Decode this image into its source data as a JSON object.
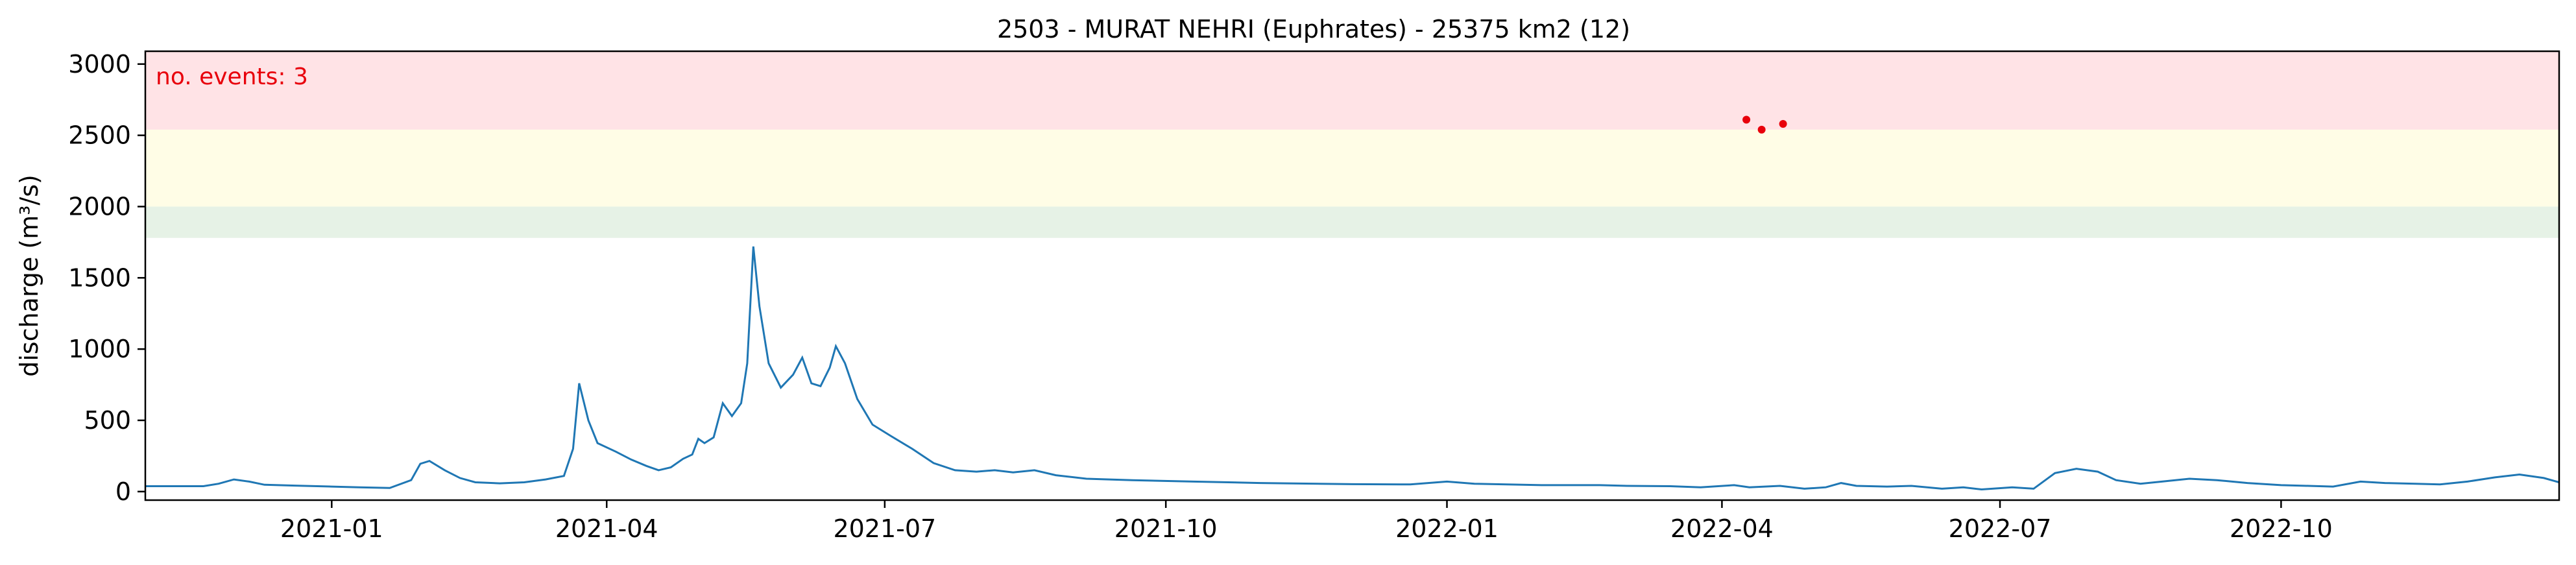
{
  "chart_data": {
    "type": "line",
    "title": "2503 - MURAT NEHRI (Euphrates) - 25375 km2 (12)",
    "xlabel": "",
    "ylabel": "discharge (m³/s)",
    "xlim": [
      "2020-11-01",
      "2022-12-31"
    ],
    "ylim": [
      -60,
      3090
    ],
    "x_tick_labels": [
      "2021-01",
      "2021-04",
      "2021-07",
      "2021-10",
      "2022-01",
      "2022-04",
      "2022-07",
      "2022-10"
    ],
    "x_ticks": [
      "2021-01-01",
      "2021-04-01",
      "2021-07-01",
      "2021-10-01",
      "2022-01-01",
      "2022-04-01",
      "2022-07-01",
      "2022-10-01"
    ],
    "y_ticks": [
      0,
      500,
      1000,
      1500,
      2000,
      2500,
      3000
    ],
    "grid": false,
    "annotation": "no. events: 3",
    "threshold_bands": [
      {
        "from": 1780,
        "to": 2000,
        "color": "#e6f2e6"
      },
      {
        "from": 2000,
        "to": 2540,
        "color": "#fffde6"
      },
      {
        "from": 2540,
        "to": 3090,
        "color": "#ffe3e6"
      }
    ],
    "line_color": "#1f77b4",
    "event_color": "#e8000b",
    "series": [
      {
        "points": [
          [
            "2020-11-01",
            38
          ],
          [
            "2020-11-20",
            38
          ],
          [
            "2020-11-25",
            55
          ],
          [
            "2020-11-30",
            85
          ],
          [
            "2020-12-05",
            70
          ],
          [
            "2020-12-10",
            48
          ],
          [
            "2020-12-20",
            42
          ],
          [
            "2021-01-01",
            35
          ],
          [
            "2021-01-10",
            30
          ],
          [
            "2021-01-20",
            25
          ],
          [
            "2021-01-27",
            80
          ],
          [
            "2021-01-30",
            195
          ],
          [
            "2021-02-02",
            215
          ],
          [
            "2021-02-07",
            150
          ],
          [
            "2021-02-12",
            95
          ],
          [
            "2021-02-17",
            65
          ],
          [
            "2021-02-25",
            58
          ],
          [
            "2021-03-05",
            65
          ],
          [
            "2021-03-12",
            85
          ],
          [
            "2021-03-18",
            110
          ],
          [
            "2021-03-21",
            300
          ],
          [
            "2021-03-23",
            760
          ],
          [
            "2021-03-26",
            500
          ],
          [
            "2021-03-29",
            340
          ],
          [
            "2021-04-04",
            280
          ],
          [
            "2021-04-09",
            225
          ],
          [
            "2021-04-14",
            180
          ],
          [
            "2021-04-18",
            150
          ],
          [
            "2021-04-22",
            170
          ],
          [
            "2021-04-26",
            230
          ],
          [
            "2021-04-29",
            260
          ],
          [
            "2021-05-01",
            370
          ],
          [
            "2021-05-03",
            340
          ],
          [
            "2021-05-06",
            380
          ],
          [
            "2021-05-09",
            620
          ],
          [
            "2021-05-12",
            530
          ],
          [
            "2021-05-15",
            620
          ],
          [
            "2021-05-17",
            900
          ],
          [
            "2021-05-19",
            1720
          ],
          [
            "2021-05-21",
            1300
          ],
          [
            "2021-05-24",
            900
          ],
          [
            "2021-05-28",
            730
          ],
          [
            "2021-06-01",
            820
          ],
          [
            "2021-06-04",
            940
          ],
          [
            "2021-06-07",
            760
          ],
          [
            "2021-06-10",
            740
          ],
          [
            "2021-06-13",
            870
          ],
          [
            "2021-06-15",
            1020
          ],
          [
            "2021-06-18",
            900
          ],
          [
            "2021-06-22",
            650
          ],
          [
            "2021-06-27",
            470
          ],
          [
            "2021-07-03",
            390
          ],
          [
            "2021-07-10",
            300
          ],
          [
            "2021-07-17",
            200
          ],
          [
            "2021-07-24",
            150
          ],
          [
            "2021-07-31",
            140
          ],
          [
            "2021-08-06",
            150
          ],
          [
            "2021-08-12",
            135
          ],
          [
            "2021-08-19",
            150
          ],
          [
            "2021-08-26",
            115
          ],
          [
            "2021-09-05",
            90
          ],
          [
            "2021-09-20",
            80
          ],
          [
            "2021-10-10",
            70
          ],
          [
            "2021-11-01",
            60
          ],
          [
            "2021-12-01",
            52
          ],
          [
            "2021-12-20",
            50
          ],
          [
            "2022-01-01",
            70
          ],
          [
            "2022-01-10",
            55
          ],
          [
            "2022-02-01",
            45
          ],
          [
            "2022-02-20",
            45
          ],
          [
            "2022-03-01",
            40
          ],
          [
            "2022-03-15",
            38
          ],
          [
            "2022-03-25",
            30
          ],
          [
            "2022-04-05",
            45
          ],
          [
            "2022-04-10",
            30
          ],
          [
            "2022-04-15",
            35
          ],
          [
            "2022-04-20",
            40
          ],
          [
            "2022-04-28",
            20
          ],
          [
            "2022-05-05",
            30
          ],
          [
            "2022-05-10",
            60
          ],
          [
            "2022-05-15",
            40
          ],
          [
            "2022-05-25",
            35
          ],
          [
            "2022-06-02",
            40
          ],
          [
            "2022-06-12",
            20
          ],
          [
            "2022-06-19",
            30
          ],
          [
            "2022-06-25",
            15
          ],
          [
            "2022-07-05",
            30
          ],
          [
            "2022-07-12",
            20
          ],
          [
            "2022-07-19",
            130
          ],
          [
            "2022-07-26",
            160
          ],
          [
            "2022-08-02",
            140
          ],
          [
            "2022-08-08",
            80
          ],
          [
            "2022-08-16",
            55
          ],
          [
            "2022-08-23",
            70
          ],
          [
            "2022-09-01",
            90
          ],
          [
            "2022-09-10",
            80
          ],
          [
            "2022-09-20",
            60
          ],
          [
            "2022-10-01",
            45
          ],
          [
            "2022-10-10",
            40
          ],
          [
            "2022-10-18",
            35
          ],
          [
            "2022-10-27",
            70
          ],
          [
            "2022-11-04",
            60
          ],
          [
            "2022-11-14",
            55
          ],
          [
            "2022-11-22",
            50
          ],
          [
            "2022-12-01",
            70
          ],
          [
            "2022-12-10",
            100
          ],
          [
            "2022-12-18",
            120
          ],
          [
            "2022-12-26",
            95
          ],
          [
            "2022-12-31",
            65
          ]
        ]
      }
    ],
    "events": [
      {
        "x": "2022-04-09",
        "y": 2610
      },
      {
        "x": "2022-04-14",
        "y": 2540
      },
      {
        "x": "2022-04-21",
        "y": 2580
      }
    ]
  }
}
